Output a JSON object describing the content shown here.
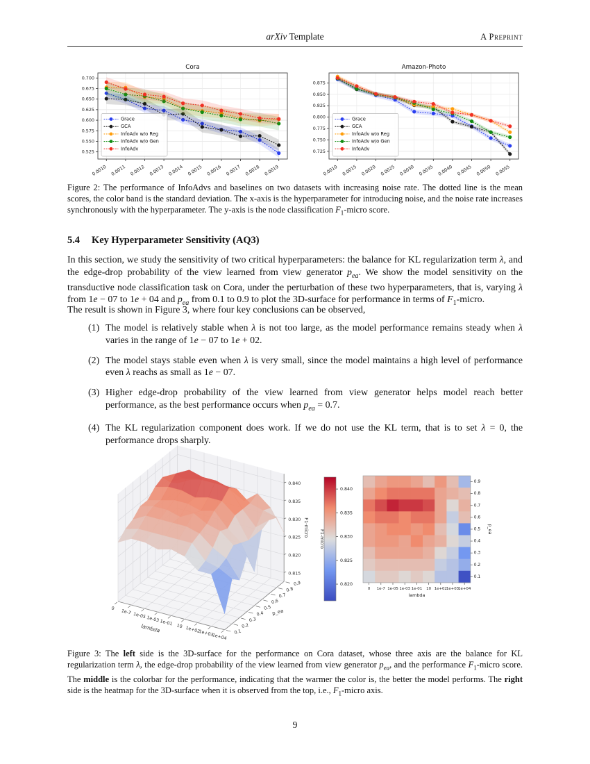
{
  "header": {
    "center_html": "<i>arXiv</i> Template",
    "right": "A Preprint"
  },
  "page": {
    "number": "9"
  },
  "section": {
    "number": "5.4",
    "title": "Key Hyperparameter Sensitivity (AQ3)"
  },
  "body": {
    "para1_html": "In this section, we study the sensitivity of two critical hyperparameters: the balance for KL regularization term <i>λ</i>, and the edge-drop probability of the view learned from view generator <i>p<sub>ea</sub></i>. We show the model sensitivity on the transductive node classification task on Cora, under the perturbation of these two hyperparameters, that is, varying <i>λ</i> from 1<i>e</i> − 07 to 1<i>e</i> + 04 and <i>p<sub>ea</sub></i> from 0.1 to 0.9 to plot the 3D-surface for performance in terms of <i>F</i><sub>1</sub>-micro.",
    "para2_html": "The result is shown in Figure 3, where four key conclusions can be observed,",
    "items": [
      {
        "num": "(1)",
        "html": "The model is relatively stable when <i>λ</i> is not too large, as the model performance remains steady when <i>λ</i> varies in the range of 1<i>e</i> − 07 to 1<i>e</i> + 02."
      },
      {
        "num": "(2)",
        "html": "The model stays stable even when <i>λ</i> is very small, since the model maintains a high level of performance even <i>λ</i> reachs as small as 1<i>e</i> − 07."
      },
      {
        "num": "(3)",
        "html": "Higher edge-drop probability of the view learned from view generator helps model reach better performance, as the best performance occurs when <i>p<sub>ea</sub></i> = 0.7."
      },
      {
        "num": "(4)",
        "html": "The KL regularization component does work.  If we do not use the KL term, that is to set <i>λ</i> = 0, the performance drops sharply."
      }
    ]
  },
  "figure2": {
    "caption_html": "Figure 2: The performance of InfoAdvs and baselines on two datasets with increasing noise rate.  The dotted line is the mean scores, the color band is the standard deviation. The x-axis is the hyperparameter for introducing noise, and the noise rate increases synchronously with the hyperparameter. The y-axis is the node classification <i>F</i><sub>1</sub>-micro score.",
    "charts": [
      {
        "type": "line",
        "title": "Cora",
        "x_labels": [
          "0.0010",
          "0.0011",
          "0.0012",
          "0.0013",
          "0.0014",
          "0.0015",
          "0.0016",
          "0.0017",
          "0.0018",
          "0.0019"
        ],
        "ylim": [
          0.508,
          0.712
        ],
        "yticks": [
          0.525,
          0.55,
          0.575,
          0.6,
          0.625,
          0.65,
          0.675,
          0.7
        ],
        "series": [
          {
            "name": "Grace",
            "color": "#2a3ff0",
            "std": 0.01,
            "values": [
              0.664,
              0.649,
              0.628,
              0.623,
              0.601,
              0.592,
              0.578,
              0.573,
              0.553,
              0.522
            ]
          },
          {
            "name": "GCA",
            "color": "#1a1a1a",
            "std": 0.013,
            "values": [
              0.651,
              0.649,
              0.639,
              0.613,
              0.615,
              0.584,
              0.577,
              0.562,
              0.563,
              0.541
            ]
          },
          {
            "name": "InfoAdv w/o Reg",
            "color": "#ff9d0a",
            "std": 0.013,
            "values": [
              0.678,
              0.677,
              0.655,
              0.651,
              0.628,
              0.622,
              0.617,
              0.605,
              0.599,
              0.602
            ]
          },
          {
            "name": "InfoAdv w/o Gen",
            "color": "#128c12",
            "std": 0.016,
            "values": [
              0.675,
              0.661,
              0.657,
              0.645,
              0.628,
              0.619,
              0.611,
              0.602,
              0.601,
              0.592
            ]
          },
          {
            "name": "InfoAdv",
            "color": "#f03024",
            "std": 0.012,
            "values": [
              0.69,
              0.674,
              0.661,
              0.656,
              0.64,
              0.635,
              0.623,
              0.615,
              0.605,
              0.603
            ]
          }
        ]
      },
      {
        "type": "line",
        "title": "Amazon-Photo",
        "x_labels": [
          "0.0010",
          "0.0015",
          "0.0020",
          "0.0025",
          "0.0030",
          "0.0035",
          "0.0040",
          "0.0045",
          "0.0050",
          "0.0055"
        ],
        "ylim": [
          0.708,
          0.897
        ],
        "yticks": [
          0.725,
          0.75,
          0.775,
          0.8,
          0.825,
          0.85,
          0.875
        ],
        "series": [
          {
            "name": "Grace",
            "color": "#2a3ff0",
            "std": 0.005,
            "values": [
              0.883,
              0.862,
              0.848,
              0.838,
              0.812,
              0.808,
              0.803,
              0.78,
              0.754,
              0.737
            ]
          },
          {
            "name": "GCA",
            "color": "#1a1a1a",
            "std": 0.004,
            "values": [
              0.885,
              0.861,
              0.851,
              0.843,
              0.826,
              0.822,
              0.79,
              0.779,
              0.767,
              0.719
            ]
          },
          {
            "name": "InfoAdv w/o Reg",
            "color": "#ff9d0a",
            "std": 0.004,
            "values": [
              0.889,
              0.868,
              0.85,
              0.844,
              0.827,
              0.822,
              0.818,
              0.805,
              0.792,
              0.767
            ]
          },
          {
            "name": "InfoAdv w/o Gen",
            "color": "#128c12",
            "std": 0.004,
            "values": [
              0.885,
              0.862,
              0.85,
              0.843,
              0.831,
              0.817,
              0.808,
              0.791,
              0.767,
              0.756
            ]
          },
          {
            "name": "InfoAdv",
            "color": "#f03024",
            "std": 0.004,
            "values": [
              0.886,
              0.868,
              0.851,
              0.844,
              0.834,
              0.829,
              0.81,
              0.805,
              0.792,
              0.78
            ]
          }
        ]
      }
    ]
  },
  "figure3": {
    "caption_html": "Figure 3: The <b>left</b> side is the 3D-surface for the performance on Cora dataset, whose three axis are the balance for KL regularization term <i>λ</i>, the edge-drop probability of the view learned from view generator <i>p<sub>ea</sub></i>, and the performance <i>F</i><sub>1</sub>-micro score. The <b>middle</b> is the colorbar for the performance, indicating that the warmer the color is, the better the model performs. The <b>right</b> side is the heatmap for the 3D-surface when it is observed from the top, i.e., <i>F</i><sub>1</sub>-micro axis.",
    "colormap": {
      "low": "#3b4cc0",
      "mid": "#dddddd",
      "high": "#b40426",
      "vmin": 0.8165,
      "vmax": 0.8425
    },
    "surface": {
      "type": "surface3d",
      "xlabel": "lambda",
      "ylabel": "p_ea",
      "zlabel": "F1-micro",
      "xticklabels": [
        "0",
        "1e-7",
        "1e-05",
        "1e-03",
        "1e-01",
        "10",
        "1e+02",
        "1e+03",
        "1e+04"
      ],
      "yticklabels": [
        "0.1",
        "0.2",
        "0.3",
        "0.4",
        "0.5",
        "0.6",
        "0.7",
        "0.8",
        "0.9"
      ],
      "zticks": [
        0.815,
        0.82,
        0.825,
        0.83,
        0.835,
        0.84
      ],
      "zlim": [
        0.8125,
        0.8425
      ]
    },
    "colorbar": {
      "ticks": [
        0.82,
        0.825,
        0.83,
        0.835,
        0.84
      ],
      "label": "F1-micro"
    },
    "heatmap": {
      "type": "heatmap",
      "xlabel": "lambda",
      "ylabel": "p_ea",
      "columns": [
        "0",
        "1e-7",
        "1e-05",
        "1e-03",
        "1e-01",
        "10",
        "1e+02",
        "1e+03",
        "1e+04"
      ],
      "rows": [
        "0.9",
        "0.8",
        "0.7",
        "0.6",
        "0.5",
        "0.4",
        "0.3",
        "0.2",
        "0.1"
      ],
      "values": [
        [
          0.832,
          0.834,
          0.835,
          0.835,
          0.834,
          0.832,
          0.835,
          0.832,
          0.826
        ],
        [
          0.834,
          0.836,
          0.837,
          0.837,
          0.837,
          0.837,
          0.834,
          0.833,
          0.832
        ],
        [
          0.837,
          0.839,
          0.841,
          0.84,
          0.84,
          0.839,
          0.834,
          0.83,
          0.833
        ],
        [
          0.836,
          0.837,
          0.837,
          0.836,
          0.837,
          0.837,
          0.834,
          0.828,
          0.832
        ],
        [
          0.834,
          0.835,
          0.836,
          0.836,
          0.835,
          0.836,
          0.832,
          0.829,
          0.822
        ],
        [
          0.834,
          0.835,
          0.835,
          0.834,
          0.836,
          0.834,
          0.833,
          0.83,
          0.828
        ],
        [
          0.832,
          0.834,
          0.834,
          0.834,
          0.834,
          0.833,
          0.83,
          0.828,
          0.823
        ],
        [
          0.831,
          0.832,
          0.832,
          0.832,
          0.832,
          0.832,
          0.828,
          0.827,
          0.825
        ],
        [
          0.829,
          0.831,
          0.831,
          0.83,
          0.831,
          0.83,
          0.827,
          0.827,
          0.817
        ]
      ]
    }
  }
}
